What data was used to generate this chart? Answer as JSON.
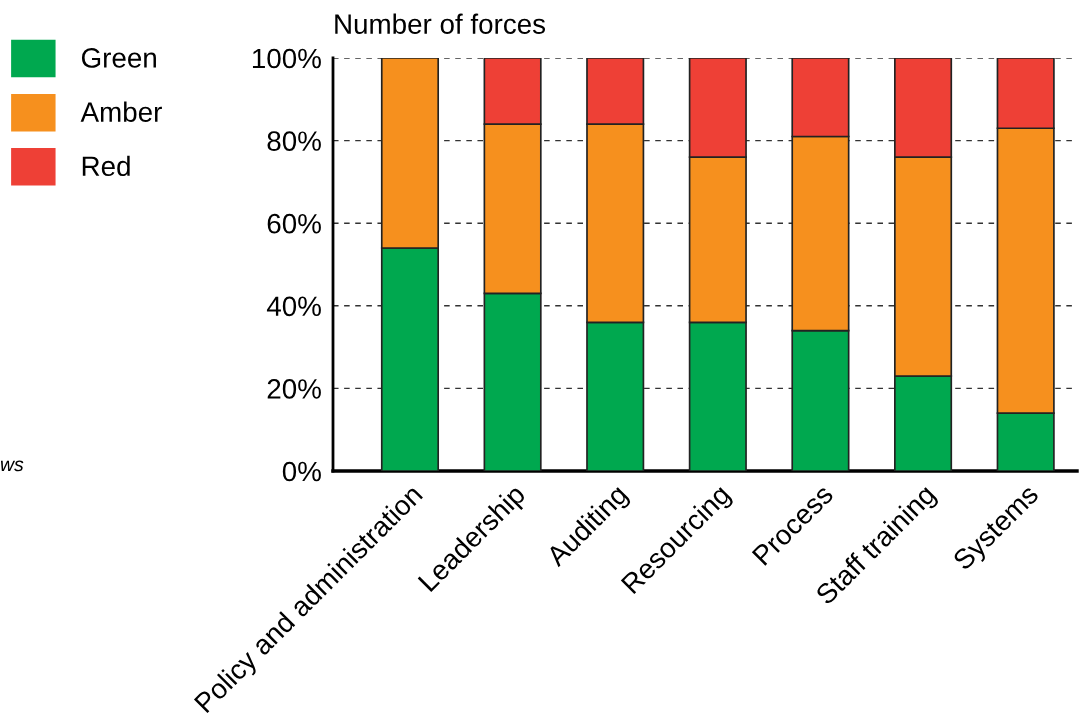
{
  "chart_data": {
    "type": "bar",
    "stacked": true,
    "ylabel": "Number of forces",
    "categories": [
      "Policy and administration",
      "Leadership",
      "Auditing",
      "Resourcing",
      "Process",
      "Staff training",
      "Systems"
    ],
    "series": [
      {
        "name": "Green",
        "color": "#00a84f",
        "values": [
          54,
          43,
          36,
          36,
          34,
          23,
          14
        ]
      },
      {
        "name": "Amber",
        "color": "#f6901e",
        "values": [
          46,
          41,
          48,
          40,
          47,
          53,
          69
        ]
      },
      {
        "name": "Red",
        "color": "#ee4036",
        "values": [
          null,
          16,
          16,
          24,
          19,
          24,
          17
        ]
      }
    ],
    "ylim": [
      0,
      100
    ],
    "yticks": [
      {
        "value": 0,
        "label": "0%"
      },
      {
        "value": 20,
        "label": "20%"
      },
      {
        "value": 40,
        "label": "40%"
      },
      {
        "value": 60,
        "label": "60%"
      },
      {
        "value": 80,
        "label": "80%"
      },
      {
        "value": 100,
        "label": "100%"
      }
    ],
    "grid": "y",
    "legend": "left",
    "annotations": [
      "ws"
    ]
  }
}
